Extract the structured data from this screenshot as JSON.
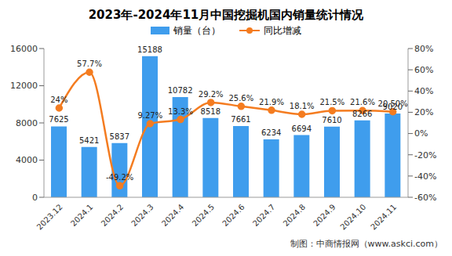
{
  "chart_data": {
    "type": "bar",
    "title": "2023年-2024年11月中国挖掘机国内销量统计情况",
    "source": "制图：中商情报网（www.askci.com）",
    "categories": [
      "2023.12",
      "2024.1",
      "2024.2",
      "2024.3",
      "2024.4",
      "2024.5",
      "2024.6",
      "2024.7",
      "2024.8",
      "2024.9",
      "2024.10",
      "2024.11"
    ],
    "series": [
      {
        "name": "销量（台）",
        "type": "bar",
        "color": "#3f9ded",
        "data_labels": true,
        "values": [
          7625,
          5421,
          5837,
          15188,
          10782,
          8518,
          7661,
          6234,
          6694,
          7610,
          8266,
          9020
        ]
      },
      {
        "name": "同比增减",
        "type": "line",
        "axis": "y2",
        "color": "#f47c20",
        "marker": "circle",
        "line_style": "solid",
        "values": [
          24,
          57.7,
          -49.2,
          9.27,
          13.3,
          29.2,
          25.6,
          21.9,
          18.1,
          21.5,
          21.6,
          20.5
        ],
        "value_labels": [
          "24%",
          "57.7%",
          "-49.2%",
          "9.27%",
          "13.3%",
          "29.2%",
          "25.6%",
          "21.9%",
          "18.1%",
          "21.5%",
          "21.6%",
          "20.50%"
        ]
      }
    ],
    "ylim": [
      0,
      16000
    ],
    "yticks": [
      0,
      4000,
      8000,
      12000,
      16000
    ],
    "y2lim": [
      -60,
      80
    ],
    "y2ticks": [
      {
        "value": -60,
        "label": "-60%"
      },
      {
        "value": -40,
        "label": "-40%"
      },
      {
        "value": -20,
        "label": "-20%"
      },
      {
        "value": 0,
        "label": "0%"
      },
      {
        "value": 20,
        "label": "20%"
      },
      {
        "value": 40,
        "label": "40%"
      },
      {
        "value": 60,
        "label": "60%"
      },
      {
        "value": 80,
        "label": "80%"
      }
    ],
    "legend": "top"
  }
}
